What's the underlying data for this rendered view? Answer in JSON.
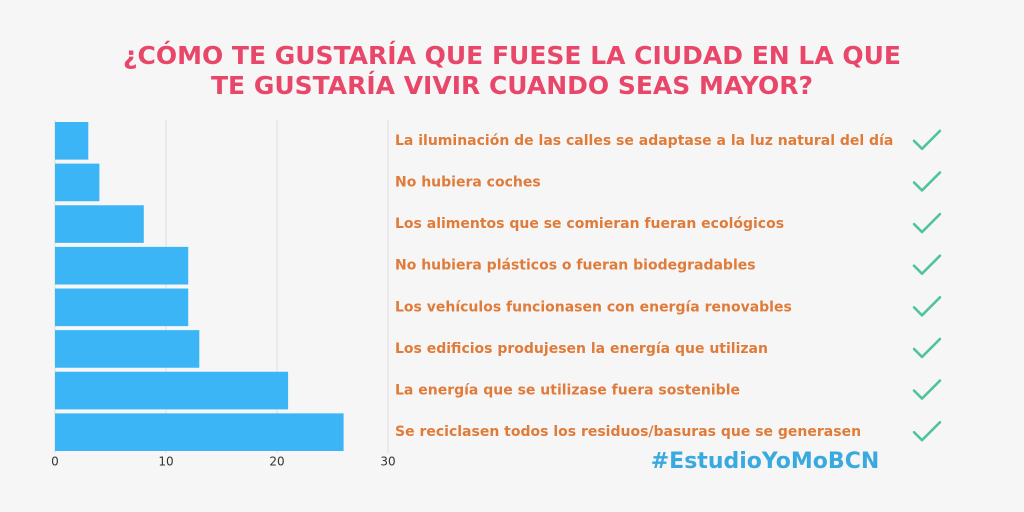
{
  "chart_data": {
    "type": "hbar",
    "title": [
      "¿CÓMO TE GUSTARÍA QUE FUESE LA CIUDAD EN LA QUE",
      "TE GUSTARÍA VIVIR CUANDO SEAS MAYOR?"
    ],
    "categories": [
      "La iluminación de las calles se adaptase a la luz natural del día",
      "No hubiera coches",
      "Los alimentos que se comieran fueran ecológicos",
      "No hubiera plásticos o fueran biodegradables",
      "Los vehículos funcionasen con energía renovables",
      "Los edificios produjesen la energía que utilizan",
      "La energía que se utilizase fuera sostenible",
      "Se reciclasen todos los residuos/basuras que se generasen"
    ],
    "values": [
      3,
      4,
      8,
      12,
      12,
      13,
      21,
      26
    ],
    "color": "#3cb5f6",
    "xlim": [
      0,
      30
    ],
    "xticks": [
      0,
      10,
      20,
      30
    ],
    "grid": true,
    "hashtag": "#EstudioYoMoBCN"
  }
}
